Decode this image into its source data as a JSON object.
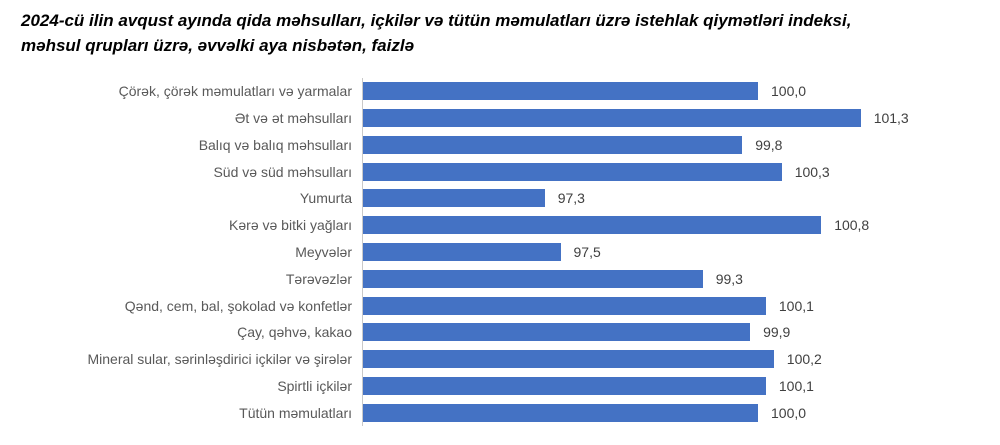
{
  "chart_data": {
    "type": "bar",
    "orientation": "horizontal",
    "title": "2024-cü ilin avqust ayında qida məhsulları, içkilər və tütün məmulatları üzrə istehlak qiymətləri indeksi, məhsul qrupları üzrə, əvvəlki aya nisbətən, faizlə",
    "title_lines": [
      "2024-cü ilin avqust ayında qida məhsulları, içkilər və tütün məmulatları üzrə istehlak qiymətləri indeksi,",
      "məhsul qrupları üzrə, əvvəlki aya nisbətən, faizlə"
    ],
    "categories": [
      "Çörək, çörək məmulatları və yarmalar",
      "Ət və ət məhsulları",
      "Balıq və balıq məhsulları",
      "Süd və süd məhsulları",
      "Yumurta",
      "Kərə və bitki yağları",
      "Meyvələr",
      "Tərəvəzlər",
      "Qənd, cem, bal, şokolad və konfetlər",
      "Çay, qəhvə, kakao",
      "Mineral sular, sərinləşdirici içkilər və şirələr",
      "Spirtli içkilər",
      "Tütün məmulatları"
    ],
    "values": [
      100.0,
      101.3,
      99.8,
      100.3,
      97.3,
      100.8,
      97.5,
      99.3,
      100.1,
      99.9,
      100.2,
      100.1,
      100.0
    ],
    "value_labels": [
      "100,0",
      "101,3",
      "99,8",
      "100,3",
      "97,3",
      "100,8",
      "97,5",
      "99,3",
      "100,1",
      "99,9",
      "100,2",
      "100,1",
      "100,0"
    ],
    "xlim": [
      95,
      103
    ],
    "bar_color": "#4472C4",
    "axis_line_color": "#c9c9c9",
    "grid": false,
    "legend": "none",
    "xlabel": "",
    "ylabel": ""
  }
}
